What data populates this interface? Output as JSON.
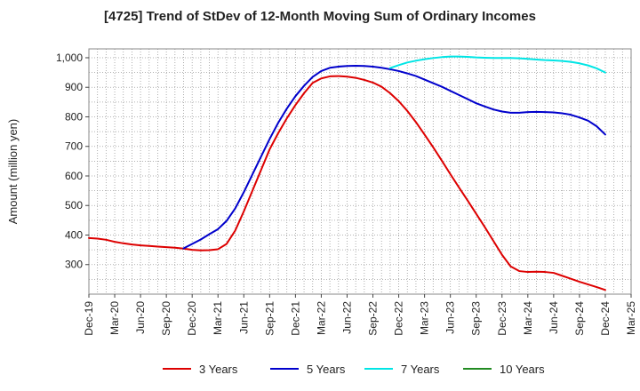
{
  "chart_data": {
    "type": "line",
    "title": "[4725]  Trend of StDev of 12-Month Moving Sum of Ordinary Incomes",
    "ylabel": "Amount (million yen)",
    "xlabel": "",
    "ylim": [
      200,
      1030
    ],
    "yticks": [
      300,
      400,
      500,
      600,
      700,
      800,
      900,
      1000
    ],
    "ytick_labels": [
      "300",
      "400",
      "500",
      "600",
      "700",
      "800",
      "900",
      "1,000"
    ],
    "xticks": [
      "Dec-19",
      "Mar-20",
      "Jun-20",
      "Sep-20",
      "Dec-20",
      "Mar-21",
      "Jun-21",
      "Sep-21",
      "Dec-21",
      "Mar-22",
      "Jun-22",
      "Sep-22",
      "Dec-22",
      "Mar-23",
      "Jun-23",
      "Sep-23",
      "Dec-23",
      "Mar-24",
      "Jun-24",
      "Sep-24",
      "Dec-24",
      "Mar-25"
    ],
    "x_start": "2019-12",
    "x_end": "2025-03",
    "grid": true,
    "legend_position": "bottom",
    "series": [
      {
        "name": "3 Years",
        "color": "#dd0000",
        "x": [
          "2019-12",
          "2020-01",
          "2020-02",
          "2020-03",
          "2020-04",
          "2020-05",
          "2020-06",
          "2020-07",
          "2020-08",
          "2020-09",
          "2020-10",
          "2020-11",
          "2020-12",
          "2021-01",
          "2021-02",
          "2021-03",
          "2021-04",
          "2021-05",
          "2021-06",
          "2021-07",
          "2021-08",
          "2021-09",
          "2021-10",
          "2021-11",
          "2021-12",
          "2022-01",
          "2022-02",
          "2022-03",
          "2022-04",
          "2022-05",
          "2022-06",
          "2022-07",
          "2022-08",
          "2022-09",
          "2022-10",
          "2022-11",
          "2022-12",
          "2023-01",
          "2023-02",
          "2023-03",
          "2023-04",
          "2023-05",
          "2023-06",
          "2023-07",
          "2023-08",
          "2023-09",
          "2023-10",
          "2023-11",
          "2023-12",
          "2024-01",
          "2024-02",
          "2024-03",
          "2024-04",
          "2024-05",
          "2024-06",
          "2024-07",
          "2024-08",
          "2024-09",
          "2024-10",
          "2024-11",
          "2024-12"
        ],
        "values": [
          390,
          388,
          384,
          377,
          372,
          368,
          365,
          363,
          361,
          359,
          357,
          354,
          350,
          348,
          349,
          352,
          370,
          415,
          480,
          550,
          620,
          690,
          745,
          795,
          840,
          880,
          915,
          930,
          937,
          938,
          936,
          932,
          925,
          916,
          902,
          880,
          853,
          820,
          782,
          740,
          697,
          652,
          606,
          561,
          517,
          472,
          427,
          380,
          333,
          294,
          278,
          275,
          276,
          275,
          272,
          262,
          252,
          242,
          233,
          224,
          214
        ]
      },
      {
        "name": "5 Years",
        "color": "#0000cc",
        "x": [
          "2020-11",
          "2020-12",
          "2021-01",
          "2021-02",
          "2021-03",
          "2021-04",
          "2021-05",
          "2021-06",
          "2021-07",
          "2021-08",
          "2021-09",
          "2021-10",
          "2021-11",
          "2021-12",
          "2022-01",
          "2022-02",
          "2022-03",
          "2022-04",
          "2022-05",
          "2022-06",
          "2022-07",
          "2022-08",
          "2022-09",
          "2022-10",
          "2022-11",
          "2022-12",
          "2023-01",
          "2023-02",
          "2023-03",
          "2023-04",
          "2023-05",
          "2023-06",
          "2023-07",
          "2023-08",
          "2023-09",
          "2023-10",
          "2023-11",
          "2023-12",
          "2024-01",
          "2024-02",
          "2024-03",
          "2024-04",
          "2024-05",
          "2024-06",
          "2024-07",
          "2024-08",
          "2024-09",
          "2024-10",
          "2024-11",
          "2024-12"
        ],
        "values": [
          355,
          370,
          385,
          403,
          420,
          448,
          490,
          545,
          605,
          665,
          725,
          780,
          828,
          870,
          905,
          935,
          955,
          966,
          970,
          972,
          973,
          972,
          970,
          966,
          961,
          955,
          947,
          938,
          926,
          914,
          902,
          888,
          874,
          860,
          846,
          835,
          825,
          818,
          814,
          814,
          816,
          817,
          816,
          815,
          812,
          807,
          798,
          787,
          768,
          740
        ]
      },
      {
        "name": "7 Years",
        "color": "#00e5e5",
        "x": [
          "2022-11",
          "2022-12",
          "2023-01",
          "2023-02",
          "2023-03",
          "2023-04",
          "2023-05",
          "2023-06",
          "2023-07",
          "2023-08",
          "2023-09",
          "2023-10",
          "2023-11",
          "2023-12",
          "2024-01",
          "2024-02",
          "2024-03",
          "2024-04",
          "2024-05",
          "2024-06",
          "2024-07",
          "2024-08",
          "2024-09",
          "2024-10",
          "2024-11",
          "2024-12"
        ],
        "values": [
          965,
          975,
          984,
          990,
          995,
          999,
          1002,
          1004,
          1004,
          1003,
          1001,
          1000,
          999,
          999,
          999,
          998,
          996,
          994,
          992,
          991,
          989,
          986,
          981,
          974,
          964,
          950
        ]
      },
      {
        "name": "10 Years",
        "color": "#228b22",
        "x": [],
        "values": []
      }
    ]
  }
}
